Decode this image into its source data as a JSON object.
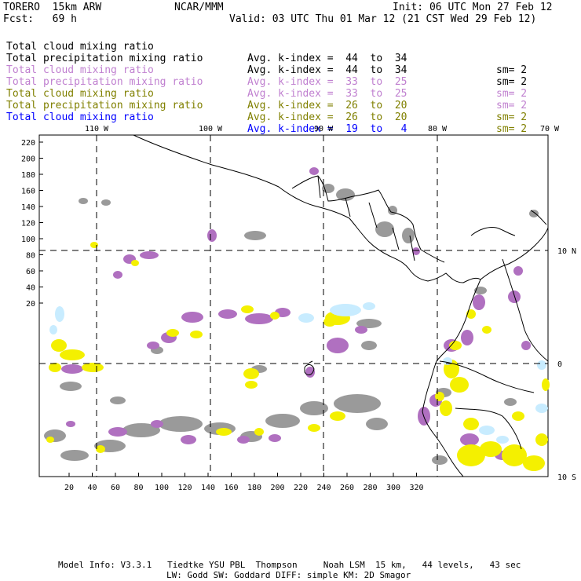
{
  "header": {
    "model": "TORERO  15km ARW",
    "org": "NCAR/MMM",
    "init": "Init: 06 UTC Mon 27 Feb 12",
    "fcst": "Fcst:   69 h",
    "valid": "Valid: 03 UTC Thu 01 Mar 12 (21 CST Wed 29 Feb 12)"
  },
  "legend": [
    {
      "name": "Total cloud mixing ratio",
      "avg": "Avg. k-index =  44  to  34",
      "sm": "sm= 2",
      "color": "#000000"
    },
    {
      "name": "Total precipitation mixing ratio",
      "avg": "Avg. k-index =  44  to  34",
      "sm": "sm= 2",
      "color": "#000000"
    },
    {
      "name": "Total cloud mixing ratio",
      "avg": "Avg. k-index =  33  to  25",
      "sm": "sm= 2",
      "color": "#c080d0"
    },
    {
      "name": "Total precipitation mixing ratio",
      "avg": "Avg. k-index =  33  to  25",
      "sm": "sm= 2",
      "color": "#c080d0"
    },
    {
      "name": "Total cloud mixing ratio",
      "avg": "Avg. k-index =  26  to  20",
      "sm": "sm= 2",
      "color": "#808000"
    },
    {
      "name": "Total precipitation mixing ratio",
      "avg": "Avg. k-index =  26  to  20",
      "sm": "sm= 2",
      "color": "#808000"
    },
    {
      "name": "Total cloud mixing ratio",
      "avg": "Avg. k-index =  19  to   4",
      "sm": "",
      "color": "#0000ff"
    }
  ],
  "map": {
    "lon_labels": [
      "110 W",
      "100 W",
      "90 W",
      "80 W",
      "70 W"
    ],
    "lat_labels": [
      "10 N",
      "0",
      "10 S"
    ],
    "y_ticks": [
      "220",
      "200",
      "180",
      "160",
      "140",
      "120",
      "100",
      "80",
      "60",
      "40",
      "20"
    ],
    "x_ticks": [
      "20",
      "40",
      "60",
      "80",
      "100",
      "120",
      "140",
      "160",
      "180",
      "200",
      "220",
      "240",
      "260",
      "280",
      "300",
      "320"
    ],
    "colors": {
      "gray": "#9a9a9a",
      "purple": "#b070c0",
      "yellow": "#f4f000",
      "cyan": "#c8ecff",
      "coast": "#000000"
    }
  },
  "footer": {
    "line1": "Model Info: V3.3.1   Tiedtke YSU PBL  Thompson     Noah LSM  15 km,   44 levels,   43 sec",
    "line2": "LW: Godd SW: Goddard DIFF: simple KM: 2D Smagor"
  }
}
